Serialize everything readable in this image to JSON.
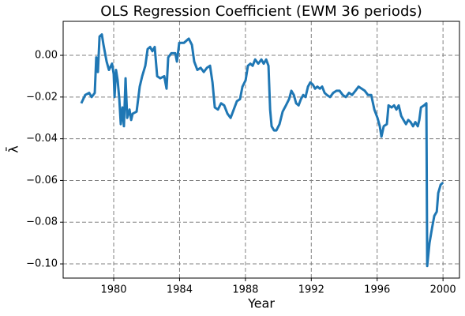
{
  "chart_data": {
    "type": "line",
    "title": "OLS Regression Coefficient (EWM 36 periods)",
    "xlabel": "Year",
    "ylabel": "λ̄",
    "grid": true,
    "xlim": [
      1976.93,
      2001.0
    ],
    "ylim": [
      -0.1068,
      0.0163
    ],
    "xticks": [
      1980,
      1984,
      1988,
      1992,
      1996,
      2000
    ],
    "yticks": [
      {
        "value": 0,
        "label": "0.00"
      },
      {
        "value": -0.02,
        "label": "−0.02"
      },
      {
        "value": -0.04,
        "label": "−0.04"
      },
      {
        "value": -0.06,
        "label": "−0.06"
      },
      {
        "value": -0.08,
        "label": "−0.08"
      },
      {
        "value": -0.1,
        "label": "−0.10"
      }
    ],
    "x": [
      1978.03,
      1978.27,
      1978.51,
      1978.66,
      1978.85,
      1978.94,
      1979.04,
      1979.14,
      1979.28,
      1979.38,
      1979.57,
      1979.71,
      1979.9,
      1980.0,
      1980.05,
      1980.14,
      1980.24,
      1980.34,
      1980.43,
      1980.53,
      1980.62,
      1980.72,
      1980.82,
      1980.96,
      1981.06,
      1981.15,
      1981.39,
      1981.58,
      1981.73,
      1981.92,
      1982.06,
      1982.21,
      1982.35,
      1982.49,
      1982.64,
      1982.83,
      1983.07,
      1983.21,
      1983.31,
      1983.5,
      1983.74,
      1983.84,
      1983.98,
      1984.27,
      1984.56,
      1984.75,
      1984.89,
      1985.08,
      1985.28,
      1985.47,
      1985.66,
      1985.85,
      1986.0,
      1986.14,
      1986.33,
      1986.52,
      1986.71,
      1986.91,
      1987.1,
      1987.29,
      1987.48,
      1987.67,
      1987.82,
      1988.01,
      1988.15,
      1988.3,
      1988.44,
      1988.59,
      1988.78,
      1988.97,
      1989.11,
      1989.26,
      1989.4,
      1989.5,
      1989.59,
      1989.74,
      1989.88,
      1990.07,
      1990.26,
      1990.46,
      1990.65,
      1990.79,
      1990.94,
      1991.08,
      1991.23,
      1991.37,
      1991.51,
      1991.65,
      1991.8,
      1991.94,
      1992.09,
      1992.23,
      1992.37,
      1992.52,
      1992.66,
      1992.81,
      1992.95,
      1993.14,
      1993.33,
      1993.53,
      1993.72,
      1993.91,
      1994.1,
      1994.29,
      1994.48,
      1994.68,
      1994.87,
      1995.06,
      1995.25,
      1995.44,
      1995.64,
      1995.83,
      1996.02,
      1996.16,
      1996.26,
      1996.4,
      1996.59,
      1996.69,
      1996.88,
      1997.03,
      1997.17,
      1997.31,
      1997.46,
      1997.6,
      1997.75,
      1997.89,
      1998.03,
      1998.18,
      1998.32,
      1998.47,
      1998.56,
      1998.66,
      1998.85,
      1998.99,
      1999.04,
      1999.18,
      1999.33,
      1999.47,
      1999.62,
      1999.71,
      1999.86,
      2000.0
    ],
    "series": [
      {
        "name": "λ̄",
        "color": "#1f77b4",
        "values": [
          -0.023,
          -0.019,
          -0.018,
          -0.02,
          -0.018,
          -0.001,
          -0.008,
          0.009,
          0.01,
          0.005,
          -0.003,
          -0.007,
          -0.004,
          -0.009,
          -0.02,
          -0.007,
          -0.012,
          -0.021,
          -0.033,
          -0.025,
          -0.034,
          -0.011,
          -0.03,
          -0.026,
          -0.031,
          -0.028,
          -0.027,
          -0.015,
          -0.01,
          -0.005,
          0.003,
          0.004,
          0.002,
          0.004,
          -0.01,
          -0.011,
          -0.01,
          -0.016,
          -0.001,
          0.001,
          0.001,
          -0.003,
          0.006,
          0.006,
          0.008,
          0.005,
          -0.003,
          -0.007,
          -0.006,
          -0.008,
          -0.006,
          -0.005,
          -0.013,
          -0.025,
          -0.026,
          -0.023,
          -0.024,
          -0.028,
          -0.03,
          -0.026,
          -0.022,
          -0.021,
          -0.015,
          -0.012,
          -0.005,
          -0.004,
          -0.005,
          -0.002,
          -0.004,
          -0.002,
          -0.004,
          -0.002,
          -0.005,
          -0.026,
          -0.034,
          -0.036,
          -0.036,
          -0.033,
          -0.027,
          -0.024,
          -0.021,
          -0.017,
          -0.019,
          -0.023,
          -0.024,
          -0.021,
          -0.019,
          -0.02,
          -0.015,
          -0.013,
          -0.014,
          -0.016,
          -0.015,
          -0.016,
          -0.015,
          -0.018,
          -0.019,
          -0.02,
          -0.018,
          -0.017,
          -0.017,
          -0.019,
          -0.02,
          -0.018,
          -0.019,
          -0.017,
          -0.015,
          -0.016,
          -0.017,
          -0.019,
          -0.019,
          -0.026,
          -0.03,
          -0.034,
          -0.039,
          -0.034,
          -0.033,
          -0.024,
          -0.025,
          -0.024,
          -0.026,
          -0.024,
          -0.029,
          -0.031,
          -0.033,
          -0.031,
          -0.032,
          -0.034,
          -0.032,
          -0.034,
          -0.031,
          -0.025,
          -0.024,
          -0.023,
          -0.101,
          -0.09,
          -0.083,
          -0.077,
          -0.075,
          -0.066,
          -0.062,
          -0.061
        ]
      }
    ]
  }
}
